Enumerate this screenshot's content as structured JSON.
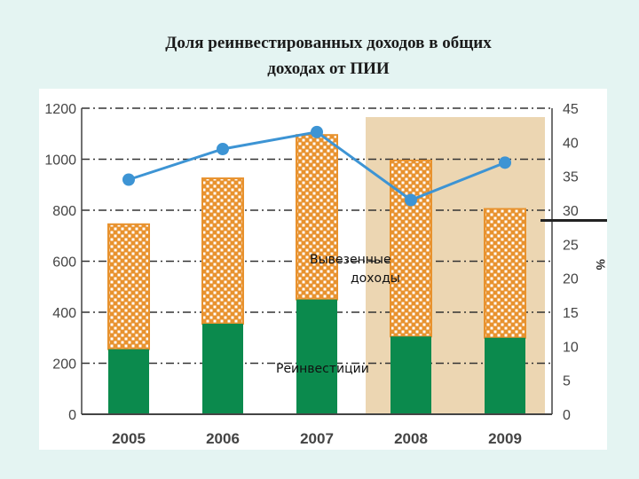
{
  "title": {
    "line1": "Доля реинвестированных доходов в общих",
    "line2": "доходах от ПИИ"
  },
  "colors": {
    "background": "#e4f4f2",
    "panel": "#ffffff",
    "reinvest": "#0b8a4d",
    "exported": "#e8922e",
    "line": "#3d94d4",
    "highlight": "#ecd6b2"
  },
  "chart_data": {
    "type": "bar",
    "categories": [
      "2005",
      "2006",
      "2007",
      "2008",
      "2009"
    ],
    "series": [
      {
        "name": "Реинвестиции",
        "values": [
          255,
          355,
          450,
          305,
          300
        ]
      },
      {
        "name": "Вывезенные доходы",
        "values": [
          490,
          570,
          645,
          690,
          505
        ]
      }
    ],
    "line_series": {
      "values": [
        34.5,
        39,
        41.5,
        31.5,
        37
      ]
    },
    "left_axis": {
      "ylim": [
        0,
        1200
      ],
      "ticks": [
        "0",
        "200",
        "400",
        "600",
        "800",
        "1000",
        "1200"
      ]
    },
    "right_axis": {
      "label": "%",
      "ylim": [
        0,
        45
      ],
      "ticks": [
        "0",
        "5",
        "10",
        "15",
        "20",
        "25",
        "30",
        "35",
        "40",
        "45"
      ]
    },
    "annotations": {
      "exported_line1": "Вывезенные",
      "exported_line2": "доходы",
      "reinvest": "Реинвестиции"
    },
    "highlighted_categories": [
      "2008",
      "2009"
    ],
    "grid": true,
    "legend": "none"
  }
}
